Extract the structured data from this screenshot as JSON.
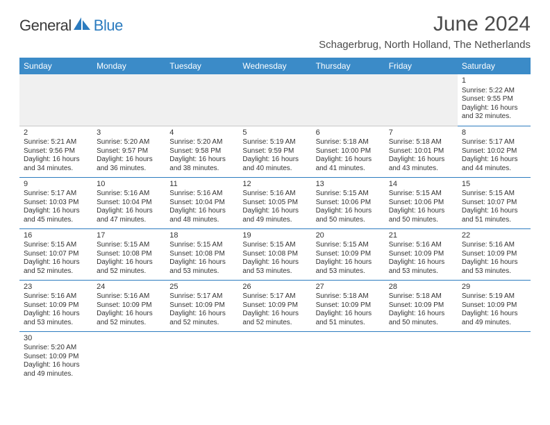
{
  "logo": {
    "part1": "General",
    "part2": "Blue",
    "icon_color": "#2b7bbf"
  },
  "title": "June 2024",
  "location": "Schagerbrug, North Holland, The Netherlands",
  "colors": {
    "header_bg": "#3b8bc8",
    "header_text": "#ffffff",
    "cell_border": "#2b7bbf",
    "body_text": "#333333",
    "first_row_bg": "#f0f0f0"
  },
  "weekdays": [
    "Sunday",
    "Monday",
    "Tuesday",
    "Wednesday",
    "Thursday",
    "Friday",
    "Saturday"
  ],
  "weeks": [
    [
      null,
      null,
      null,
      null,
      null,
      null,
      {
        "day": "1",
        "sunrise": "Sunrise: 5:22 AM",
        "sunset": "Sunset: 9:55 PM",
        "daylight1": "Daylight: 16 hours",
        "daylight2": "and 32 minutes."
      }
    ],
    [
      {
        "day": "2",
        "sunrise": "Sunrise: 5:21 AM",
        "sunset": "Sunset: 9:56 PM",
        "daylight1": "Daylight: 16 hours",
        "daylight2": "and 34 minutes."
      },
      {
        "day": "3",
        "sunrise": "Sunrise: 5:20 AM",
        "sunset": "Sunset: 9:57 PM",
        "daylight1": "Daylight: 16 hours",
        "daylight2": "and 36 minutes."
      },
      {
        "day": "4",
        "sunrise": "Sunrise: 5:20 AM",
        "sunset": "Sunset: 9:58 PM",
        "daylight1": "Daylight: 16 hours",
        "daylight2": "and 38 minutes."
      },
      {
        "day": "5",
        "sunrise": "Sunrise: 5:19 AM",
        "sunset": "Sunset: 9:59 PM",
        "daylight1": "Daylight: 16 hours",
        "daylight2": "and 40 minutes."
      },
      {
        "day": "6",
        "sunrise": "Sunrise: 5:18 AM",
        "sunset": "Sunset: 10:00 PM",
        "daylight1": "Daylight: 16 hours",
        "daylight2": "and 41 minutes."
      },
      {
        "day": "7",
        "sunrise": "Sunrise: 5:18 AM",
        "sunset": "Sunset: 10:01 PM",
        "daylight1": "Daylight: 16 hours",
        "daylight2": "and 43 minutes."
      },
      {
        "day": "8",
        "sunrise": "Sunrise: 5:17 AM",
        "sunset": "Sunset: 10:02 PM",
        "daylight1": "Daylight: 16 hours",
        "daylight2": "and 44 minutes."
      }
    ],
    [
      {
        "day": "9",
        "sunrise": "Sunrise: 5:17 AM",
        "sunset": "Sunset: 10:03 PM",
        "daylight1": "Daylight: 16 hours",
        "daylight2": "and 45 minutes."
      },
      {
        "day": "10",
        "sunrise": "Sunrise: 5:16 AM",
        "sunset": "Sunset: 10:04 PM",
        "daylight1": "Daylight: 16 hours",
        "daylight2": "and 47 minutes."
      },
      {
        "day": "11",
        "sunrise": "Sunrise: 5:16 AM",
        "sunset": "Sunset: 10:04 PM",
        "daylight1": "Daylight: 16 hours",
        "daylight2": "and 48 minutes."
      },
      {
        "day": "12",
        "sunrise": "Sunrise: 5:16 AM",
        "sunset": "Sunset: 10:05 PM",
        "daylight1": "Daylight: 16 hours",
        "daylight2": "and 49 minutes."
      },
      {
        "day": "13",
        "sunrise": "Sunrise: 5:15 AM",
        "sunset": "Sunset: 10:06 PM",
        "daylight1": "Daylight: 16 hours",
        "daylight2": "and 50 minutes."
      },
      {
        "day": "14",
        "sunrise": "Sunrise: 5:15 AM",
        "sunset": "Sunset: 10:06 PM",
        "daylight1": "Daylight: 16 hours",
        "daylight2": "and 50 minutes."
      },
      {
        "day": "15",
        "sunrise": "Sunrise: 5:15 AM",
        "sunset": "Sunset: 10:07 PM",
        "daylight1": "Daylight: 16 hours",
        "daylight2": "and 51 minutes."
      }
    ],
    [
      {
        "day": "16",
        "sunrise": "Sunrise: 5:15 AM",
        "sunset": "Sunset: 10:07 PM",
        "daylight1": "Daylight: 16 hours",
        "daylight2": "and 52 minutes."
      },
      {
        "day": "17",
        "sunrise": "Sunrise: 5:15 AM",
        "sunset": "Sunset: 10:08 PM",
        "daylight1": "Daylight: 16 hours",
        "daylight2": "and 52 minutes."
      },
      {
        "day": "18",
        "sunrise": "Sunrise: 5:15 AM",
        "sunset": "Sunset: 10:08 PM",
        "daylight1": "Daylight: 16 hours",
        "daylight2": "and 53 minutes."
      },
      {
        "day": "19",
        "sunrise": "Sunrise: 5:15 AM",
        "sunset": "Sunset: 10:08 PM",
        "daylight1": "Daylight: 16 hours",
        "daylight2": "and 53 minutes."
      },
      {
        "day": "20",
        "sunrise": "Sunrise: 5:15 AM",
        "sunset": "Sunset: 10:09 PM",
        "daylight1": "Daylight: 16 hours",
        "daylight2": "and 53 minutes."
      },
      {
        "day": "21",
        "sunrise": "Sunrise: 5:16 AM",
        "sunset": "Sunset: 10:09 PM",
        "daylight1": "Daylight: 16 hours",
        "daylight2": "and 53 minutes."
      },
      {
        "day": "22",
        "sunrise": "Sunrise: 5:16 AM",
        "sunset": "Sunset: 10:09 PM",
        "daylight1": "Daylight: 16 hours",
        "daylight2": "and 53 minutes."
      }
    ],
    [
      {
        "day": "23",
        "sunrise": "Sunrise: 5:16 AM",
        "sunset": "Sunset: 10:09 PM",
        "daylight1": "Daylight: 16 hours",
        "daylight2": "and 53 minutes."
      },
      {
        "day": "24",
        "sunrise": "Sunrise: 5:16 AM",
        "sunset": "Sunset: 10:09 PM",
        "daylight1": "Daylight: 16 hours",
        "daylight2": "and 52 minutes."
      },
      {
        "day": "25",
        "sunrise": "Sunrise: 5:17 AM",
        "sunset": "Sunset: 10:09 PM",
        "daylight1": "Daylight: 16 hours",
        "daylight2": "and 52 minutes."
      },
      {
        "day": "26",
        "sunrise": "Sunrise: 5:17 AM",
        "sunset": "Sunset: 10:09 PM",
        "daylight1": "Daylight: 16 hours",
        "daylight2": "and 52 minutes."
      },
      {
        "day": "27",
        "sunrise": "Sunrise: 5:18 AM",
        "sunset": "Sunset: 10:09 PM",
        "daylight1": "Daylight: 16 hours",
        "daylight2": "and 51 minutes."
      },
      {
        "day": "28",
        "sunrise": "Sunrise: 5:18 AM",
        "sunset": "Sunset: 10:09 PM",
        "daylight1": "Daylight: 16 hours",
        "daylight2": "and 50 minutes."
      },
      {
        "day": "29",
        "sunrise": "Sunrise: 5:19 AM",
        "sunset": "Sunset: 10:09 PM",
        "daylight1": "Daylight: 16 hours",
        "daylight2": "and 49 minutes."
      }
    ],
    [
      {
        "day": "30",
        "sunrise": "Sunrise: 5:20 AM",
        "sunset": "Sunset: 10:09 PM",
        "daylight1": "Daylight: 16 hours",
        "daylight2": "and 49 minutes."
      },
      null,
      null,
      null,
      null,
      null,
      null
    ]
  ]
}
